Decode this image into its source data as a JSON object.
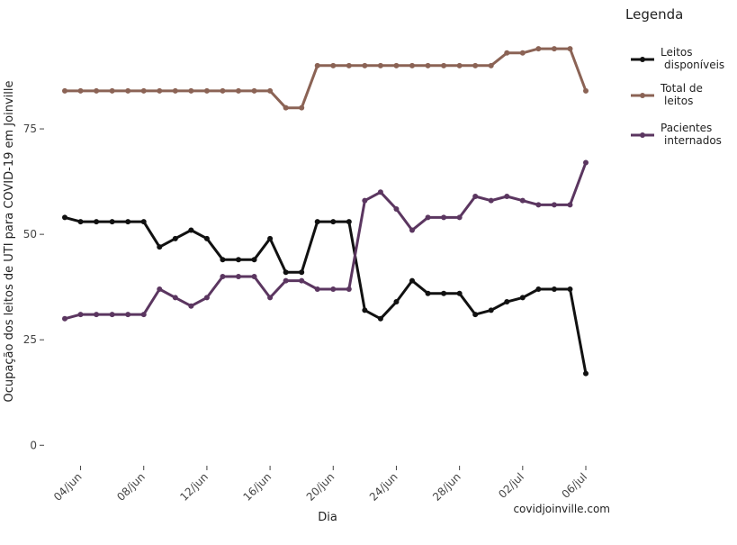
{
  "chart_data": {
    "type": "line",
    "xlabel": "Dia",
    "ylabel": "Ocupação dos leitos de UTI para COVID-19 em Joinville",
    "x": [
      "03/jun",
      "04/jun",
      "05/jun",
      "06/jun",
      "07/jun",
      "08/jun",
      "09/jun",
      "10/jun",
      "11/jun",
      "12/jun",
      "13/jun",
      "14/jun",
      "15/jun",
      "16/jun",
      "17/jun",
      "18/jun",
      "19/jun",
      "20/jun",
      "21/jun",
      "22/jun",
      "23/jun",
      "24/jun",
      "25/jun",
      "26/jun",
      "27/jun",
      "28/jun",
      "29/jun",
      "30/jun",
      "01/jul",
      "02/jul",
      "03/jul",
      "04/jul",
      "05/jul",
      "06/jul"
    ],
    "x_ticks": [
      "04/jun",
      "08/jun",
      "12/jun",
      "16/jun",
      "20/jun",
      "24/jun",
      "28/jun",
      "02/jul",
      "06/jul"
    ],
    "y_ticks": [
      0,
      25,
      50,
      75
    ],
    "ylim": [
      -4,
      100
    ],
    "grid": false,
    "legend": {
      "title": "Legenda",
      "placement": "top-right",
      "entries": [
        {
          "lines": [
            "Leitos",
            "disponíveis"
          ]
        },
        {
          "lines": [
            "Total de",
            "leitos"
          ]
        },
        {
          "lines": [
            "Pacientes",
            "internados"
          ]
        }
      ]
    },
    "series": [
      {
        "name": "Leitos disponíveis",
        "color": "#111111",
        "values": [
          54,
          53,
          53,
          53,
          53,
          53,
          47,
          49,
          51,
          49,
          44,
          44,
          44,
          49,
          41,
          41,
          53,
          53,
          53,
          32,
          30,
          34,
          39,
          36,
          36,
          36,
          31,
          32,
          34,
          35,
          37,
          37,
          37,
          17
        ]
      },
      {
        "name": "Total de leitos",
        "color": "#8B6355",
        "values": [
          84,
          84,
          84,
          84,
          84,
          84,
          84,
          84,
          84,
          84,
          84,
          84,
          84,
          84,
          80,
          80,
          90,
          90,
          90,
          90,
          90,
          90,
          90,
          90,
          90,
          90,
          90,
          90,
          93,
          93,
          94,
          94,
          94,
          84
        ]
      },
      {
        "name": "Pacientes internados",
        "color": "#5B3660",
        "values": [
          30,
          31,
          31,
          31,
          31,
          31,
          37,
          35,
          33,
          35,
          40,
          40,
          40,
          35,
          39,
          39,
          37,
          37,
          37,
          58,
          60,
          56,
          51,
          54,
          54,
          54,
          59,
          58,
          59,
          58,
          57,
          57,
          57,
          67
        ]
      }
    ]
  },
  "credit": "covidjoinville.com"
}
